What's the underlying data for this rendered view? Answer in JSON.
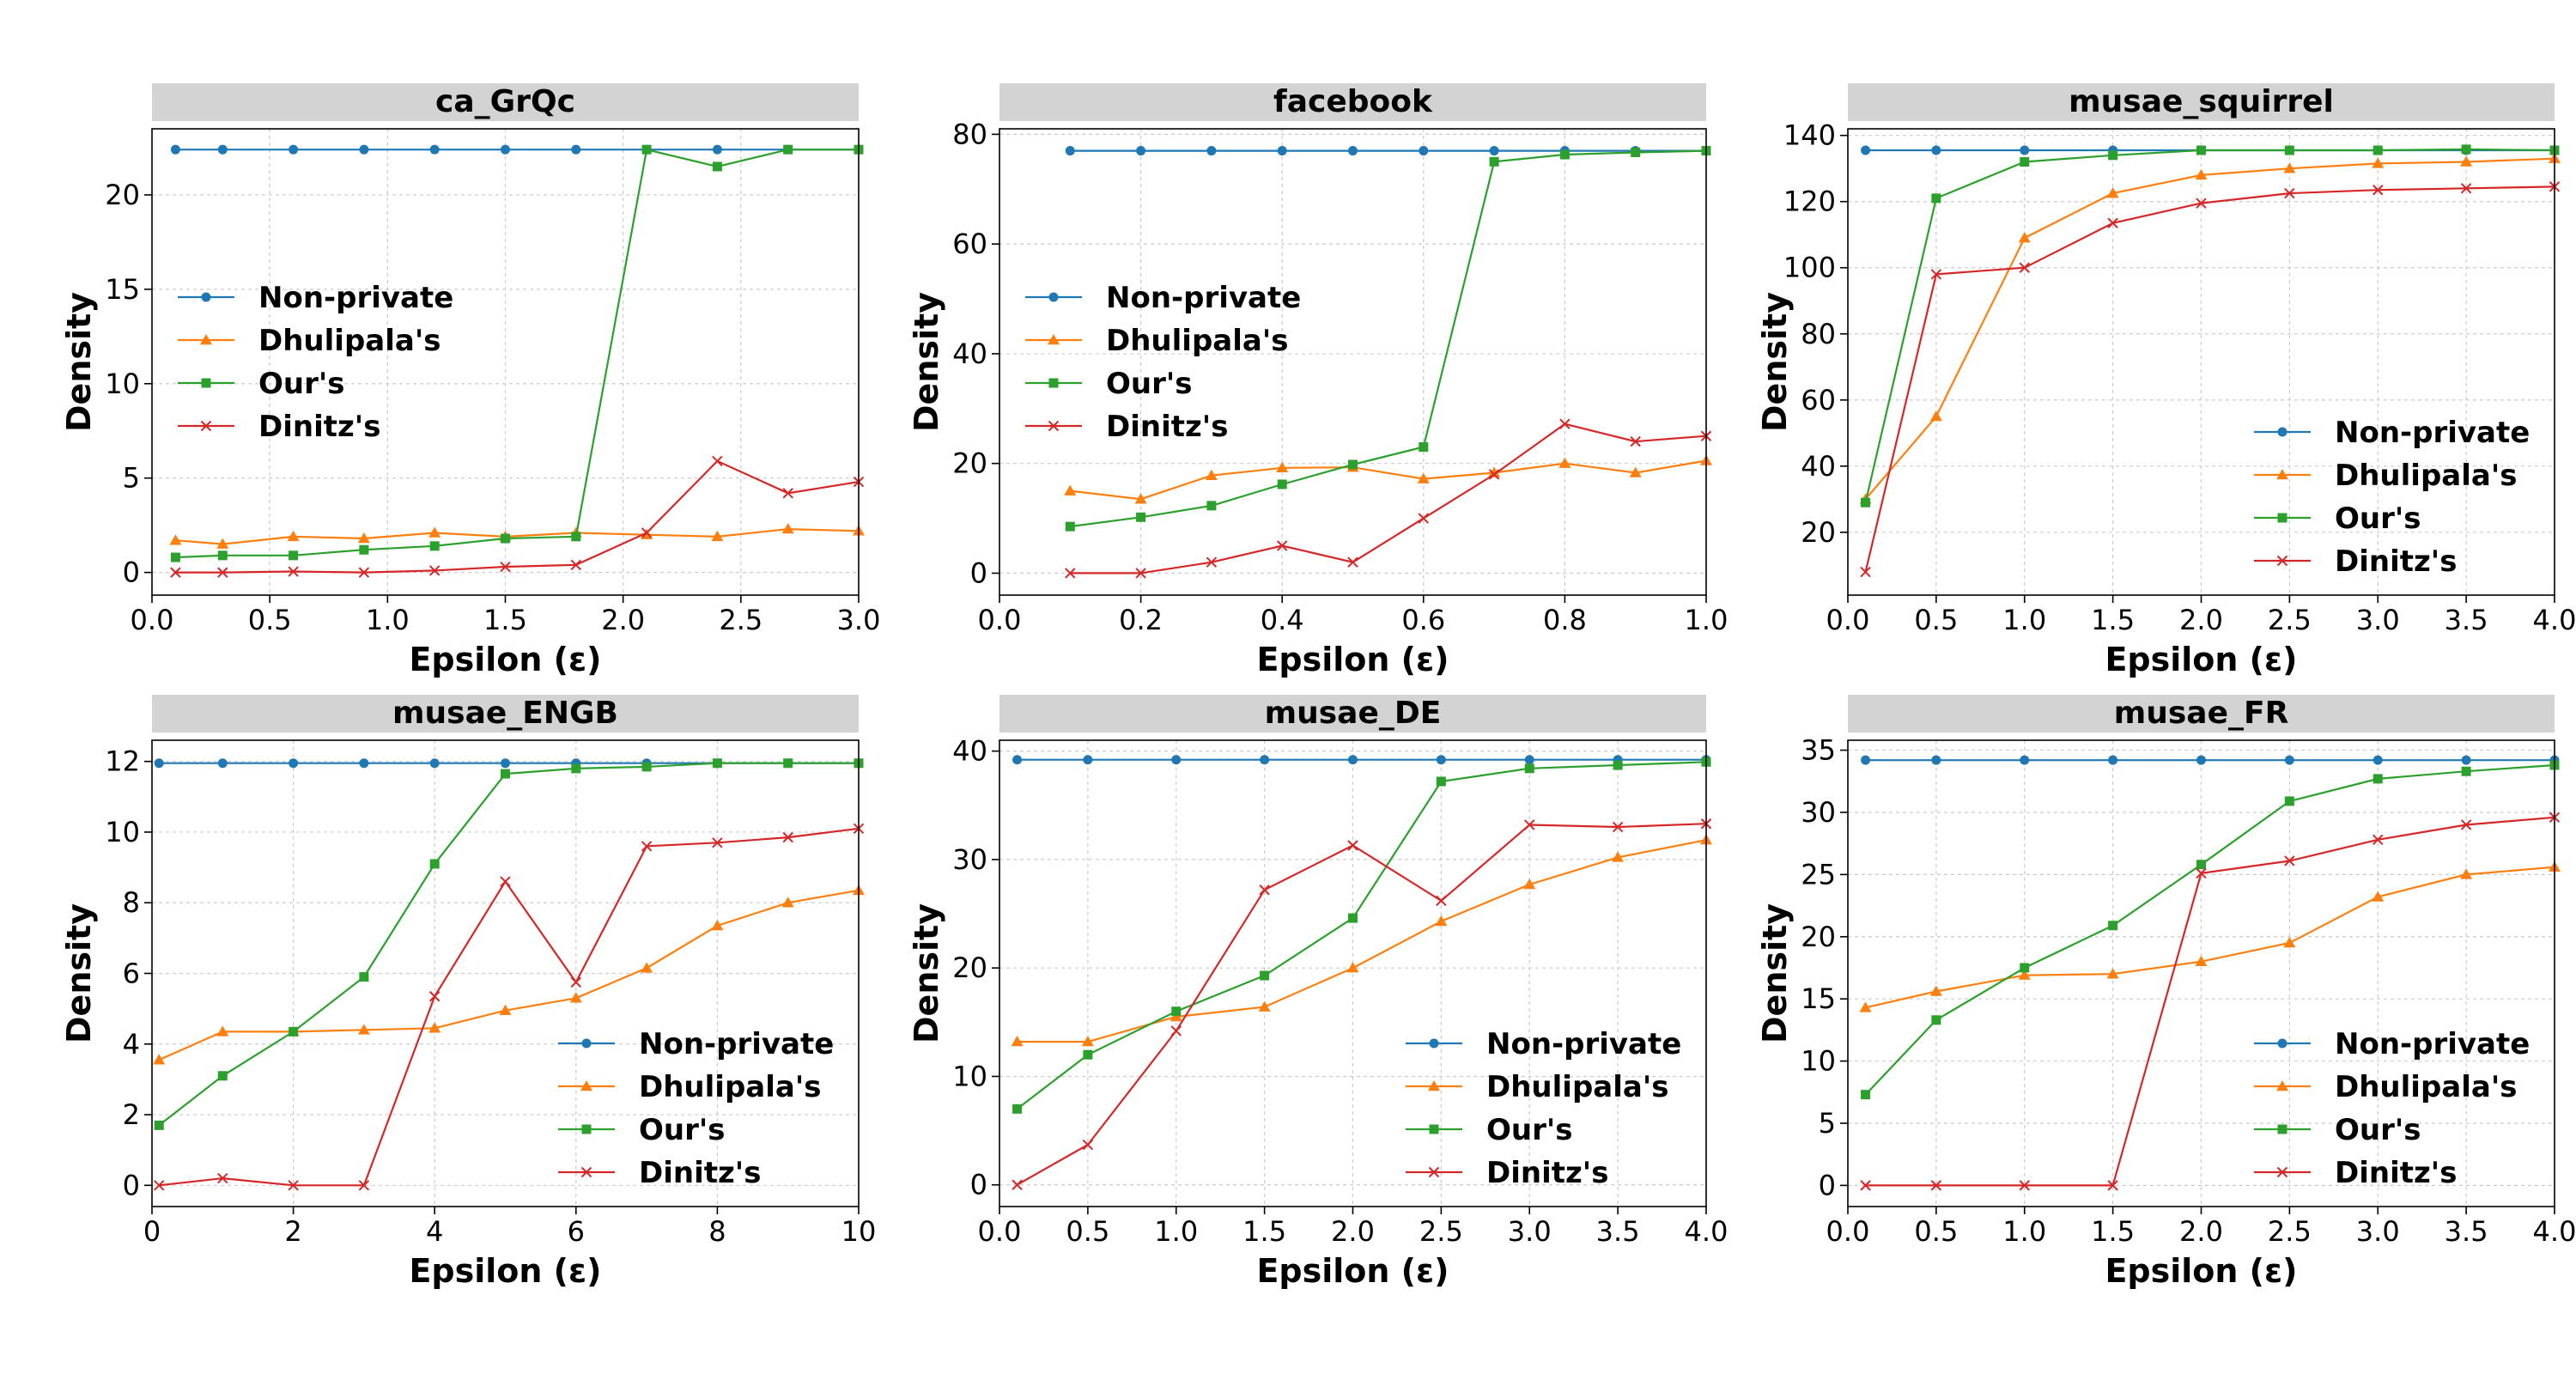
{
  "figure": {
    "ylabel": "Density",
    "xlabel": "Epsilon (ε)",
    "colors": {
      "Non-private": "#1f77b4",
      "Dhulipala's": "#ff7f0e",
      "Our's": "#2ca02c",
      "Dinitz's": "#d62728"
    },
    "markers": {
      "Non-private": "circle",
      "Dhulipala's": "triangle",
      "Our's": "square",
      "Dinitz's": "x"
    }
  },
  "chart_data": [
    {
      "type": "line",
      "title": "ca_GrQc",
      "xlabel": "Epsilon (ε)",
      "ylabel": "Density",
      "xlim": [
        0,
        3
      ],
      "ylim": [
        -1.2,
        23.5
      ],
      "xticks": [
        "0.0",
        "0.5",
        "1.0",
        "1.5",
        "2.0",
        "2.5",
        "3.0"
      ],
      "yticks": [
        "0",
        "5",
        "10",
        "15",
        "20"
      ],
      "legend": "upper-left",
      "grid": true,
      "x": [
        0.1,
        0.3,
        0.6,
        0.9,
        1.2,
        1.5,
        1.8,
        2.1,
        2.4,
        2.7,
        3.0
      ],
      "series": [
        {
          "name": "Non-private",
          "values": [
            22.4,
            22.4,
            22.4,
            22.4,
            22.4,
            22.4,
            22.4,
            22.4,
            22.4,
            22.4,
            22.4
          ]
        },
        {
          "name": "Dhulipala's",
          "values": [
            1.7,
            1.5,
            1.9,
            1.8,
            2.1,
            1.9,
            2.1,
            2.0,
            1.9,
            2.3,
            2.2
          ]
        },
        {
          "name": "Our's",
          "values": [
            0.8,
            0.9,
            0.9,
            1.2,
            1.4,
            1.8,
            1.9,
            22.4,
            21.5,
            22.4,
            22.4
          ]
        },
        {
          "name": "Dinitz's",
          "values": [
            0.0,
            0.0,
            0.05,
            0.0,
            0.1,
            0.3,
            0.4,
            2.1,
            5.9,
            4.2,
            4.8
          ]
        }
      ]
    },
    {
      "type": "line",
      "title": "facebook",
      "xlabel": "Epsilon (ε)",
      "ylabel": "Density",
      "xlim": [
        0,
        1
      ],
      "ylim": [
        -4,
        81
      ],
      "xticks": [
        "0.0",
        "0.2",
        "0.4",
        "0.6",
        "0.8",
        "1.0"
      ],
      "yticks": [
        "0",
        "20",
        "40",
        "60",
        "80"
      ],
      "legend": "upper-left",
      "grid": true,
      "x": [
        0.1,
        0.2,
        0.3,
        0.4,
        0.5,
        0.6,
        0.7,
        0.8,
        0.9,
        1.0
      ],
      "series": [
        {
          "name": "Non-private",
          "values": [
            77,
            77,
            77,
            77,
            77,
            77,
            77,
            77,
            77,
            77
          ]
        },
        {
          "name": "Dhulipala's",
          "values": [
            15,
            13.5,
            17.8,
            19.2,
            19.3,
            17.2,
            18.3,
            20,
            18.3,
            20.5
          ]
        },
        {
          "name": "Our's",
          "values": [
            8.5,
            10.2,
            12.3,
            16.2,
            19.8,
            23,
            75,
            76.3,
            76.7,
            77
          ]
        },
        {
          "name": "Dinitz's",
          "values": [
            0,
            0,
            2,
            5,
            2,
            10,
            18,
            27.2,
            24,
            25
          ]
        }
      ]
    },
    {
      "type": "line",
      "title": "musae_squirrel",
      "xlabel": "Epsilon (ε)",
      "ylabel": "Density",
      "xlim": [
        0,
        4
      ],
      "ylim": [
        1,
        142
      ],
      "xticks": [
        "0.0",
        "0.5",
        "1.0",
        "1.5",
        "2.0",
        "2.5",
        "3.0",
        "3.5",
        "4.0"
      ],
      "yticks": [
        "20",
        "40",
        "60",
        "80",
        "100",
        "120",
        "140"
      ],
      "legend": "lower-right",
      "grid": true,
      "x": [
        0.1,
        0.5,
        1.0,
        1.5,
        2.0,
        2.5,
        3.0,
        3.5,
        4.0
      ],
      "series": [
        {
          "name": "Non-private",
          "values": [
            135.5,
            135.5,
            135.5,
            135.5,
            135.5,
            135.5,
            135.5,
            135.5,
            135.5
          ]
        },
        {
          "name": "Dhulipala's",
          "values": [
            30,
            55,
            109,
            122.5,
            128,
            130,
            131.5,
            132,
            133
          ]
        },
        {
          "name": "Our's",
          "values": [
            29,
            121,
            132,
            134,
            135.5,
            135.5,
            135.5,
            135.8,
            135.5
          ]
        },
        {
          "name": "Dinitz's",
          "values": [
            8,
            98,
            100,
            113.5,
            119.5,
            122.5,
            123.5,
            124,
            124.5
          ]
        }
      ]
    },
    {
      "type": "line",
      "title": "musae_ENGB",
      "xlabel": "Epsilon (ε)",
      "ylabel": "Density",
      "xlim": [
        0,
        10
      ],
      "ylim": [
        -0.6,
        12.6
      ],
      "xticks": [
        "0",
        "2",
        "4",
        "6",
        "8",
        "10"
      ],
      "yticks": [
        "0",
        "2",
        "4",
        "6",
        "8",
        "10",
        "12"
      ],
      "legend": "lower-right",
      "grid": true,
      "x": [
        0.1,
        1,
        2,
        3,
        4,
        5,
        6,
        7,
        8,
        9,
        10
      ],
      "series": [
        {
          "name": "Non-private",
          "values": [
            11.95,
            11.95,
            11.95,
            11.95,
            11.95,
            11.95,
            11.95,
            11.95,
            11.95,
            11.95,
            11.95
          ]
        },
        {
          "name": "Dhulipala's",
          "values": [
            3.55,
            4.35,
            4.35,
            4.4,
            4.45,
            4.95,
            5.3,
            6.15,
            7.35,
            8.0,
            8.35
          ]
        },
        {
          "name": "Our's",
          "values": [
            1.7,
            3.1,
            4.35,
            5.9,
            9.1,
            11.65,
            11.8,
            11.85,
            11.95,
            11.95,
            11.95
          ]
        },
        {
          "name": "Dinitz's",
          "values": [
            0.0,
            0.2,
            0.0,
            0.0,
            5.35,
            8.6,
            5.75,
            9.6,
            9.7,
            9.85,
            10.1
          ]
        }
      ]
    },
    {
      "type": "line",
      "title": "musae_DE",
      "xlabel": "Epsilon (ε)",
      "ylabel": "Density",
      "xlim": [
        0,
        4
      ],
      "ylim": [
        -2,
        41
      ],
      "xticks": [
        "0.0",
        "0.5",
        "1.0",
        "1.5",
        "2.0",
        "2.5",
        "3.0",
        "3.5",
        "4.0"
      ],
      "yticks": [
        "0",
        "10",
        "20",
        "30",
        "40"
      ],
      "legend": "lower-right",
      "grid": true,
      "x": [
        0.1,
        0.5,
        1.0,
        1.5,
        2.0,
        2.5,
        3.0,
        3.5,
        4.0
      ],
      "series": [
        {
          "name": "Non-private",
          "values": [
            39.2,
            39.2,
            39.2,
            39.2,
            39.2,
            39.2,
            39.2,
            39.2,
            39.2
          ]
        },
        {
          "name": "Dhulipala's",
          "values": [
            13.2,
            13.2,
            15.5,
            16.4,
            20,
            24.3,
            27.7,
            30.2,
            31.8
          ]
        },
        {
          "name": "Our's",
          "values": [
            7,
            12,
            16,
            19.3,
            24.6,
            37.2,
            38.4,
            38.7,
            39
          ]
        },
        {
          "name": "Dinitz's",
          "values": [
            0,
            3.7,
            14.2,
            27.2,
            31.3,
            26.2,
            33.2,
            33,
            33.3
          ]
        }
      ]
    },
    {
      "type": "line",
      "title": "musae_FR",
      "xlabel": "Epsilon (ε)",
      "ylabel": "Density",
      "xlim": [
        0,
        4
      ],
      "ylim": [
        -1.7,
        35.8
      ],
      "xticks": [
        "0.0",
        "0.5",
        "1.0",
        "1.5",
        "2.0",
        "2.5",
        "3.0",
        "3.5",
        "4.0"
      ],
      "yticks": [
        "0",
        "5",
        "10",
        "15",
        "20",
        "25",
        "30",
        "35"
      ],
      "legend": "lower-right",
      "grid": true,
      "x": [
        0.1,
        0.5,
        1.0,
        1.5,
        2.0,
        2.5,
        3.0,
        3.5,
        4.0
      ],
      "series": [
        {
          "name": "Non-private",
          "values": [
            34.2,
            34.2,
            34.2,
            34.2,
            34.2,
            34.2,
            34.2,
            34.2,
            34.2
          ]
        },
        {
          "name": "Dhulipala's",
          "values": [
            14.3,
            15.6,
            16.9,
            17.0,
            18.0,
            19.5,
            23.2,
            25.0,
            25.6
          ]
        },
        {
          "name": "Our's",
          "values": [
            7.3,
            13.3,
            17.5,
            20.9,
            25.8,
            30.9,
            32.7,
            33.3,
            33.8
          ]
        },
        {
          "name": "Dinitz's",
          "values": [
            0,
            0,
            0,
            0,
            25.1,
            26.1,
            27.8,
            29.0,
            29.6
          ]
        }
      ]
    }
  ]
}
